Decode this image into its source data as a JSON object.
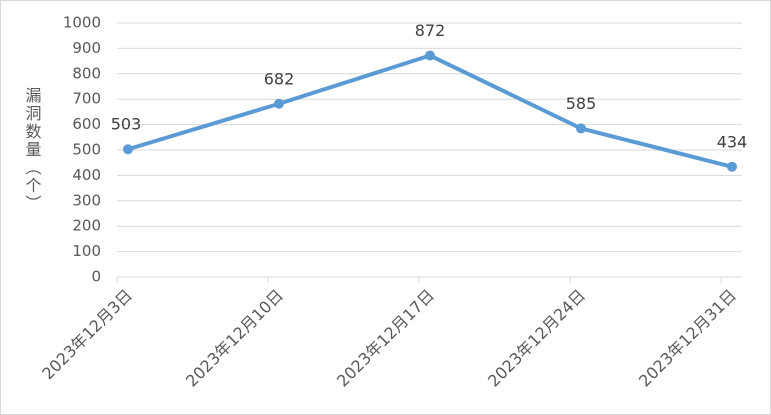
{
  "chart_data": {
    "type": "line",
    "y_label": "漏洞数量（个）",
    "categories": [
      "2023年12月3日",
      "2023年12月10日",
      "2023年12月17日",
      "2023年12月24日",
      "2023年12月31日"
    ],
    "values": [
      503,
      682,
      872,
      585,
      434
    ],
    "color": "#5b9bd5",
    "ylim": [
      0,
      1000
    ],
    "yticks": [
      0,
      100,
      200,
      300,
      400,
      500,
      600,
      700,
      800,
      900,
      1000
    ],
    "grid": true
  }
}
